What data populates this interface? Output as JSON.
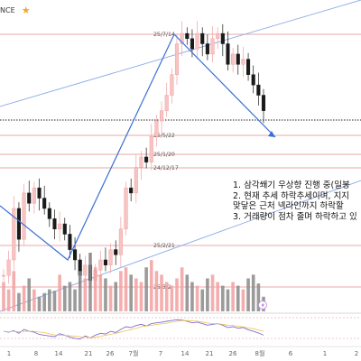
{
  "header": {
    "ticker_text": "NCE",
    "star_icon": "star-icon"
  },
  "colors": {
    "up": "#f2a0a0",
    "up_fill": "#f7c4c4",
    "down": "#1a1a1a",
    "trendline": "#3b6fd6",
    "channel": "#8aa9e8",
    "level_line": "#e88a8a",
    "rsi": "#7a6fd6",
    "rsi_avg": "#f2c14e"
  },
  "annotations": [
    "1. 삼각쐐기 우상향 진행 중(일봉",
    "2. 현재 추세 하락추세이며, 지지",
    "   맞닿은 근처 넥라인까지 하락할",
    "3. 거래량이 점차 줄며 하락하고 있"
  ],
  "chart_data": {
    "type": "candlestick",
    "level_labels": [
      "25/7/14",
      "25/5/22",
      "25/1/20",
      "24/12/17",
      "25/2/21",
      "25/3/2"
    ],
    "x_tick_labels": [
      "1",
      "8",
      "14",
      "21",
      "26",
      "7월",
      "7",
      "14",
      "21",
      "26",
      "8월",
      "6",
      "1",
      "2"
    ],
    "grid": false,
    "candles": [
      [
        95,
        1
      ],
      [
        110,
        1
      ],
      [
        160,
        1
      ],
      [
        130,
        0
      ],
      [
        175,
        1
      ],
      [
        165,
        0
      ],
      [
        180,
        1
      ],
      [
        170,
        0
      ],
      [
        160,
        0
      ],
      [
        150,
        0
      ],
      [
        140,
        0
      ],
      [
        145,
        1
      ],
      [
        135,
        0
      ],
      [
        120,
        0
      ],
      [
        110,
        0
      ],
      [
        95,
        0
      ],
      [
        105,
        1
      ],
      [
        90,
        0
      ],
      [
        100,
        1
      ],
      [
        110,
        1
      ],
      [
        105,
        0
      ],
      [
        120,
        1
      ],
      [
        115,
        0
      ],
      [
        140,
        1
      ],
      [
        180,
        1
      ],
      [
        175,
        0
      ],
      [
        200,
        1
      ],
      [
        210,
        1
      ],
      [
        205,
        0
      ],
      [
        230,
        1
      ],
      [
        245,
        1
      ],
      [
        255,
        1
      ],
      [
        270,
        1
      ],
      [
        290,
        1
      ],
      [
        320,
        1
      ],
      [
        330,
        1
      ],
      [
        325,
        0
      ],
      [
        315,
        0
      ],
      [
        330,
        1
      ],
      [
        320,
        0
      ],
      [
        310,
        0
      ],
      [
        325,
        1
      ],
      [
        330,
        1
      ],
      [
        320,
        0
      ],
      [
        300,
        0
      ],
      [
        310,
        1
      ],
      [
        300,
        0
      ],
      [
        305,
        1
      ],
      [
        290,
        0
      ],
      [
        280,
        0
      ],
      [
        270,
        0
      ],
      [
        255,
        0
      ]
    ],
    "volume": [
      40,
      30,
      55,
      25,
      35,
      45,
      30,
      20,
      25,
      30,
      28,
      50,
      35,
      40,
      30,
      55,
      45,
      80,
      60,
      50,
      45,
      35,
      40,
      55,
      60,
      50,
      45,
      40,
      60,
      70,
      55,
      50,
      40,
      35,
      45,
      60,
      50,
      40,
      35,
      30,
      45,
      50,
      40,
      35,
      30,
      40,
      35,
      30,
      45,
      50,
      38,
      20
    ],
    "rsi": [
      50,
      48,
      52,
      45,
      55,
      50,
      48,
      42,
      40,
      38,
      36,
      44,
      40,
      35,
      32,
      30,
      38,
      33,
      40,
      45,
      43,
      50,
      47,
      55,
      62,
      60,
      65,
      68,
      64,
      70,
      72,
      74,
      76,
      78,
      80,
      79,
      76,
      72,
      74,
      70,
      66,
      68,
      70,
      66,
      60,
      62,
      58,
      60,
      54,
      50,
      46,
      40
    ]
  }
}
